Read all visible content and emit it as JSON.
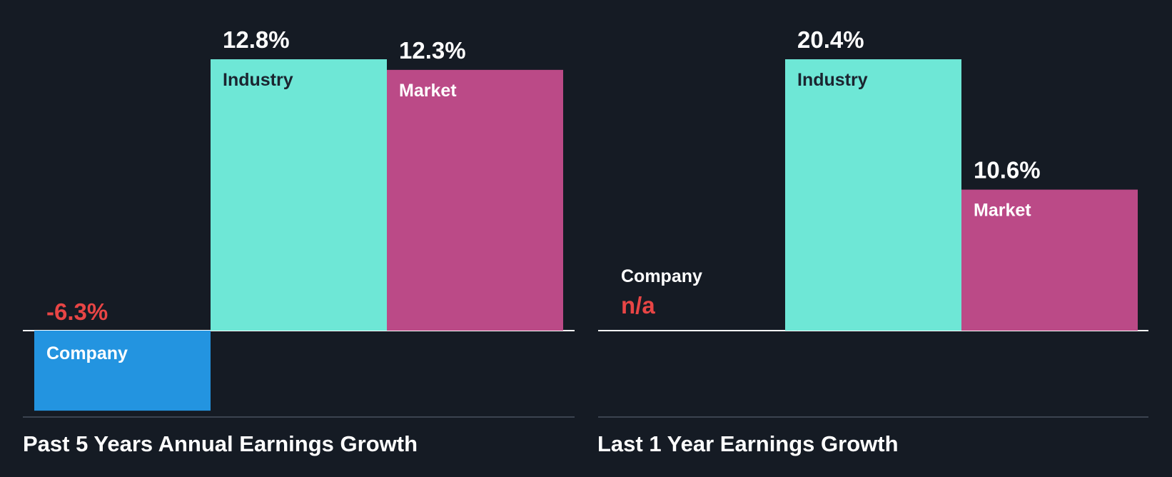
{
  "colors": {
    "background": "#151b24",
    "company": "#2394e0",
    "industry": "#6ee7d6",
    "market": "#bb4a87",
    "negative": "#e84545",
    "label_dark": "#1b2530",
    "label_light": "#ffffff",
    "baseline": "#ffffff",
    "bottom_rule": "#3b4350"
  },
  "chart_data": [
    {
      "type": "bar",
      "title": "Past 5 Years Annual Earnings Growth",
      "categories": [
        "Company",
        "Industry",
        "Market"
      ],
      "values": [
        -6.3,
        12.8,
        12.3
      ],
      "value_labels": [
        "-6.3%",
        "12.8%",
        "12.3%"
      ],
      "unit": "%",
      "ylim": [
        -6.8,
        12.8
      ]
    },
    {
      "type": "bar",
      "title": "Last 1 Year Earnings Growth",
      "categories": [
        "Company",
        "Industry",
        "Market"
      ],
      "values": [
        null,
        20.4,
        10.6
      ],
      "value_labels": [
        "n/a",
        "20.4%",
        "10.6%"
      ],
      "unit": "%",
      "ylim": [
        -6.5,
        20.4
      ]
    }
  ]
}
